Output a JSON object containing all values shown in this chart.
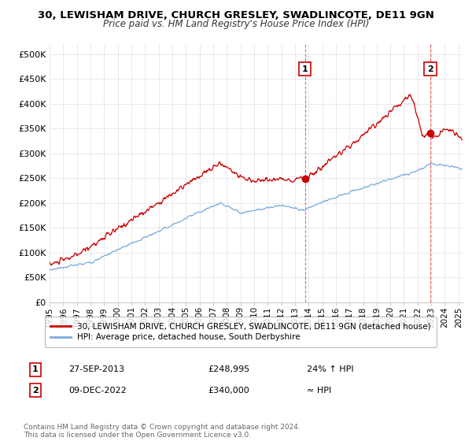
{
  "title": "30, LEWISHAM DRIVE, CHURCH GRESLEY, SWADLINCOTE, DE11 9GN",
  "subtitle": "Price paid vs. HM Land Registry's House Price Index (HPI)",
  "ylabel_ticks": [
    "£0",
    "£50K",
    "£100K",
    "£150K",
    "£200K",
    "£250K",
    "£300K",
    "£350K",
    "£400K",
    "£450K",
    "£500K"
  ],
  "ytick_values": [
    0,
    50000,
    100000,
    150000,
    200000,
    250000,
    300000,
    350000,
    400000,
    450000,
    500000
  ],
  "ylim": [
    0,
    520000
  ],
  "xlim_start": 1995.0,
  "xlim_end": 2025.3,
  "red_color": "#cc0000",
  "blue_color": "#7aaadd",
  "dashed_red": "#cc0000",
  "legend_label_red": "30, LEWISHAM DRIVE, CHURCH GRESLEY, SWADLINCOTE, DE11 9GN (detached house)",
  "legend_label_blue": "HPI: Average price, detached house, South Derbyshire",
  "annotation1_num": "1",
  "annotation1_date": "27-SEP-2013",
  "annotation1_price": "£248,995",
  "annotation1_hpi": "24% ↑ HPI",
  "annotation2_num": "2",
  "annotation2_date": "09-DEC-2022",
  "annotation2_price": "£340,000",
  "annotation2_hpi": "≈ HPI",
  "footnote": "Contains HM Land Registry data © Crown copyright and database right 2024.\nThis data is licensed under the Open Government Licence v3.0.",
  "sale1_x": 2013.74,
  "sale1_y": 248995,
  "sale2_x": 2022.94,
  "sale2_y": 340000,
  "xtick_years": [
    1995,
    1996,
    1997,
    1998,
    1999,
    2000,
    2001,
    2002,
    2003,
    2004,
    2005,
    2006,
    2007,
    2008,
    2009,
    2010,
    2011,
    2012,
    2013,
    2014,
    2015,
    2016,
    2017,
    2018,
    2019,
    2020,
    2021,
    2022,
    2023,
    2024,
    2025
  ]
}
